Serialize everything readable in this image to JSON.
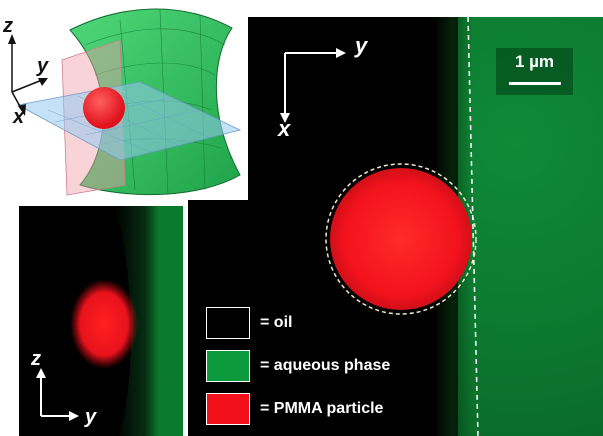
{
  "scalebar": {
    "label": "1 µm"
  },
  "main_axes": {
    "horizontal": "y",
    "vertical": "x"
  },
  "side_axes": {
    "vertical": "z",
    "horizontal": "y"
  },
  "schematic_axes": {
    "z": "z",
    "y": "y",
    "x": "x"
  },
  "legend": [
    {
      "label": "= oil",
      "color": "#000000"
    },
    {
      "label": "= aqueous phase",
      "color": "#0d9a3d"
    },
    {
      "label": "= PMMA particle",
      "color": "#f2101a"
    }
  ],
  "colors": {
    "oil": "#000000",
    "aqueous": "#0c7b30",
    "particle": "#ee1a22"
  }
}
